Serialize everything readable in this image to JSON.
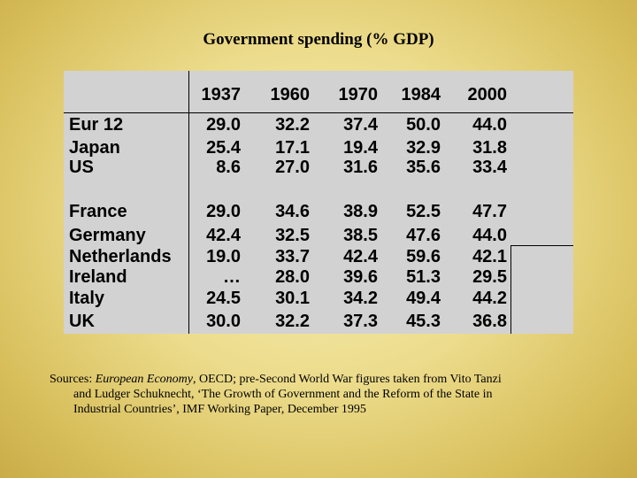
{
  "title": "Government spending (% GDP)",
  "table": {
    "years": [
      "1937",
      "1960",
      "1970",
      "1984",
      "2000"
    ],
    "rows": [
      {
        "country": "Eur 12",
        "values": [
          "29.0",
          "32.2",
          "37.4",
          "50.0",
          "44.0"
        ]
      },
      {
        "country": "Japan",
        "values": [
          "25.4",
          "17.1",
          "19.4",
          "32.9",
          "31.8"
        ]
      },
      {
        "country": "US",
        "values": [
          "8.6",
          "27.0",
          "31.6",
          "35.6",
          "33.4"
        ]
      },
      {
        "country": "France",
        "values": [
          "29.0",
          "34.6",
          "38.9",
          "52.5",
          "47.7"
        ]
      },
      {
        "country": "Germany",
        "values": [
          "42.4",
          "32.5",
          "38.5",
          "47.6",
          "44.0"
        ]
      },
      {
        "country": "Netherlands",
        "values": [
          "19.0",
          "33.7",
          "42.4",
          "59.6",
          "42.1"
        ]
      },
      {
        "country": "Ireland",
        "values": [
          "…",
          "28.0",
          "39.6",
          "51.3",
          "29.5"
        ]
      },
      {
        "country": "Italy",
        "values": [
          "24.5",
          "30.1",
          "34.2",
          "49.4",
          "44.2"
        ]
      },
      {
        "country": "UK",
        "values": [
          "30.0",
          "32.2",
          "37.3",
          "45.3",
          "36.8"
        ]
      }
    ]
  },
  "sources": {
    "prefix": "Sources: ",
    "publication": "European Economy",
    "line1_rest": ", OECD; pre-Second World War figures taken from Vito Tanzi",
    "line2": "and Ludger Schuknecht, ‘The Growth of Government and the Reform of the State in",
    "line3": "Industrial Countries’, IMF Working Paper, December 1995"
  }
}
